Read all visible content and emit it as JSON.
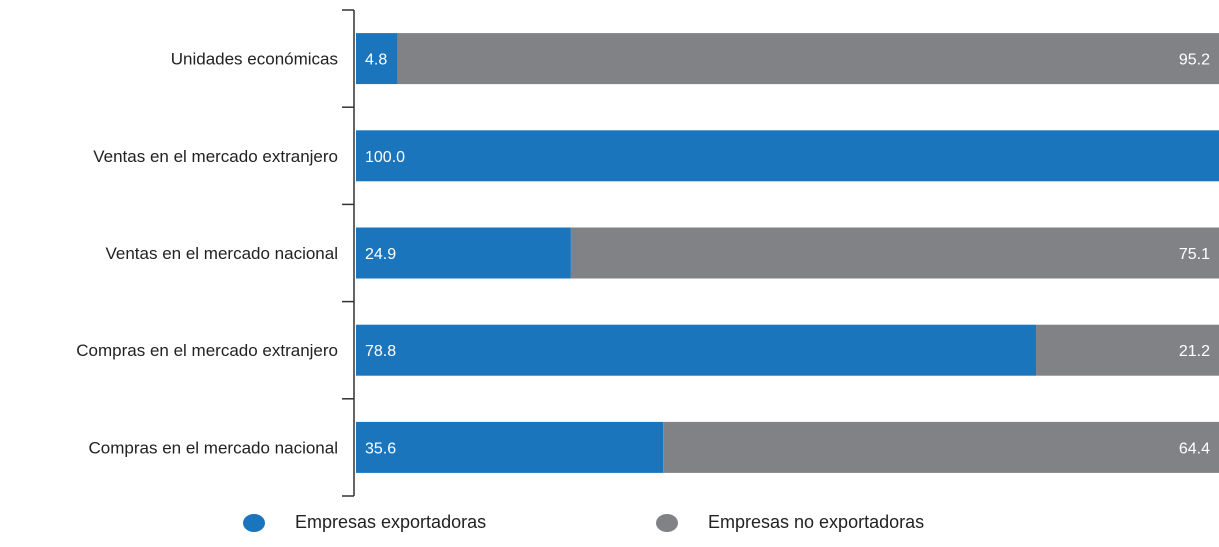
{
  "chart_data": {
    "type": "bar",
    "orientation": "horizontal",
    "stacked": true,
    "categories": [
      "Unidades económicas",
      "Ventas en el mercado extranjero",
      "Ventas en el mercado nacional",
      "Compras en el mercado extranjero",
      "Compras en el mercado nacional"
    ],
    "series": [
      {
        "name": "Empresas exportadoras",
        "values": [
          4.8,
          100.0,
          24.9,
          78.8,
          35.6
        ],
        "color": "#1a75bc"
      },
      {
        "name": "Empresas no exportadoras",
        "values": [
          95.2,
          0.0,
          75.1,
          21.2,
          64.4
        ],
        "color": "#808285"
      }
    ],
    "xlim": [
      0,
      100
    ],
    "grid": false,
    "legend_position": "bottom"
  }
}
